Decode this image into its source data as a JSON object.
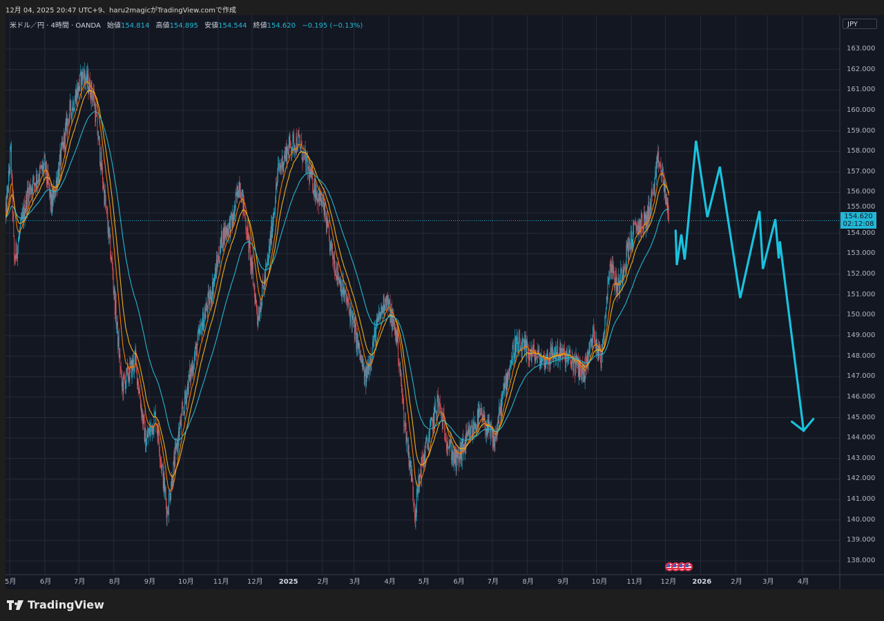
{
  "caption": "12月 04, 2025 20:47 UTC+9、haru2magicがTradingView.comで作成",
  "legend": {
    "symbol": "米ドル／円 · 4時間 · OANDA",
    "open_label": "始値",
    "open": "154.814",
    "high_label": "高値",
    "high": "154.895",
    "low_label": "安値",
    "low": "154.544",
    "close_label": "終値",
    "close": "154.620",
    "change": "−0.195 (−0.13%)"
  },
  "currency": "JPY",
  "last_price": {
    "price": "154.620",
    "countdown": "02:12:08"
  },
  "brand": "TradingView",
  "colors": {
    "background": "#131722",
    "grid": "#262b37",
    "up": "#22b8d6",
    "down": "#e0525a",
    "ma_fast": "#f57c00",
    "ma_mid": "#f0b020",
    "ma_slow": "#26b6d0",
    "projection": "#18c3df"
  },
  "chart_data": {
    "type": "candlestick",
    "interval": "4h",
    "ylim": [
      137.5,
      164
    ],
    "y_ticks": [
      "138.000",
      "139.000",
      "140.000",
      "141.000",
      "142.000",
      "143.000",
      "144.000",
      "145.000",
      "146.000",
      "147.000",
      "148.000",
      "149.000",
      "150.000",
      "151.000",
      "152.000",
      "153.000",
      "154.000",
      "155.000",
      "156.000",
      "157.000",
      "158.000",
      "159.000",
      "160.000",
      "161.000",
      "162.000",
      "163.000"
    ],
    "x_ticks": [
      {
        "label": "5月",
        "date": "2024-05-01"
      },
      {
        "label": "6月",
        "date": "2024-06-01"
      },
      {
        "label": "7月",
        "date": "2024-07-01"
      },
      {
        "label": "8月",
        "date": "2024-08-01"
      },
      {
        "label": "9月",
        "date": "2024-09-01"
      },
      {
        "label": "10月",
        "date": "2024-10-01"
      },
      {
        "label": "11月",
        "date": "2024-11-01"
      },
      {
        "label": "12月",
        "date": "2024-12-01"
      },
      {
        "label": "2025",
        "date": "2025-01-01",
        "bold": true
      },
      {
        "label": "2月",
        "date": "2025-02-01"
      },
      {
        "label": "3月",
        "date": "2025-03-01"
      },
      {
        "label": "4月",
        "date": "2025-04-01"
      },
      {
        "label": "5月",
        "date": "2025-05-01"
      },
      {
        "label": "6月",
        "date": "2025-06-01"
      },
      {
        "label": "7月",
        "date": "2025-07-01"
      },
      {
        "label": "8月",
        "date": "2025-08-01"
      },
      {
        "label": "9月",
        "date": "2025-09-01"
      },
      {
        "label": "10月",
        "date": "2025-10-01"
      },
      {
        "label": "11月",
        "date": "2025-11-01"
      },
      {
        "label": "12月",
        "date": "2025-12-01"
      },
      {
        "label": "2026",
        "date": "2026-01-01",
        "bold": true
      },
      {
        "label": "2月",
        "date": "2026-02-01"
      },
      {
        "label": "3月",
        "date": "2026-03-01"
      },
      {
        "label": "4月",
        "date": "2026-04-01"
      }
    ],
    "price_path": [
      [
        "2024-04-27",
        154.6
      ],
      [
        "2024-05-02",
        158.0
      ],
      [
        "2024-05-05",
        152.6
      ],
      [
        "2024-05-17",
        156.0
      ],
      [
        "2024-06-01",
        157.3
      ],
      [
        "2024-06-07",
        155.3
      ],
      [
        "2024-06-22",
        159.7
      ],
      [
        "2024-07-05",
        161.8
      ],
      [
        "2024-07-14",
        160.7
      ],
      [
        "2024-07-20",
        157.7
      ],
      [
        "2024-07-30",
        152.6
      ],
      [
        "2024-08-08",
        146.5
      ],
      [
        "2024-08-20",
        147.8
      ],
      [
        "2024-08-29",
        143.8
      ],
      [
        "2024-09-07",
        145.1
      ],
      [
        "2024-09-17",
        140.4
      ],
      [
        "2024-09-26",
        143.8
      ],
      [
        "2024-10-05",
        146.5
      ],
      [
        "2024-10-18",
        149.6
      ],
      [
        "2024-10-27",
        151.3
      ],
      [
        "2024-11-05",
        153.9
      ],
      [
        "2024-11-14",
        154.6
      ],
      [
        "2024-11-20",
        156.6
      ],
      [
        "2024-11-27",
        153.9
      ],
      [
        "2024-12-06",
        149.9
      ],
      [
        "2024-12-15",
        152.6
      ],
      [
        "2024-12-24",
        157.0
      ],
      [
        "2025-01-03",
        158.3
      ],
      [
        "2025-01-11",
        158.5
      ],
      [
        "2025-01-18",
        157.3
      ],
      [
        "2025-01-27",
        156.0
      ],
      [
        "2025-02-02",
        155.3
      ],
      [
        "2025-02-08",
        153.3
      ],
      [
        "2025-02-17",
        151.6
      ],
      [
        "2025-02-27",
        149.9
      ],
      [
        "2025-03-11",
        146.8
      ],
      [
        "2025-03-20",
        149.2
      ],
      [
        "2025-03-29",
        150.9
      ],
      [
        "2025-04-08",
        148.9
      ],
      [
        "2025-04-14",
        145.1
      ],
      [
        "2025-04-20",
        142.5
      ],
      [
        "2025-04-24",
        140.4
      ],
      [
        "2025-04-29",
        142.5
      ],
      [
        "2025-05-05",
        143.8
      ],
      [
        "2025-05-14",
        145.8
      ],
      [
        "2025-05-23",
        143.8
      ],
      [
        "2025-05-30",
        142.8
      ],
      [
        "2025-06-08",
        143.8
      ],
      [
        "2025-06-20",
        145.1
      ],
      [
        "2025-07-03",
        143.8
      ],
      [
        "2025-07-12",
        146.5
      ],
      [
        "2025-07-21",
        148.5
      ],
      [
        "2025-08-03",
        148.2
      ],
      [
        "2025-08-15",
        147.8
      ],
      [
        "2025-08-27",
        148.2
      ],
      [
        "2025-09-08",
        147.8
      ],
      [
        "2025-09-20",
        147.2
      ],
      [
        "2025-09-29",
        149.2
      ],
      [
        "2025-10-05",
        147.8
      ],
      [
        "2025-10-13",
        152.6
      ],
      [
        "2025-10-20",
        151.3
      ],
      [
        "2025-10-29",
        153.3
      ],
      [
        "2025-11-05",
        154.3
      ],
      [
        "2025-11-14",
        154.6
      ],
      [
        "2025-11-20",
        156.0
      ],
      [
        "2025-11-25",
        157.6
      ],
      [
        "2025-11-30",
        156.3
      ],
      [
        "2025-12-04",
        154.62
      ]
    ],
    "moving_averages": [
      "ma_fast",
      "ma_mid",
      "ma_slow"
    ],
    "projection": [
      [
        "2025-12-10",
        154.13
      ],
      [
        "2025-12-11",
        152.45
      ],
      [
        "2025-12-15",
        153.94
      ],
      [
        "2025-12-18",
        152.72
      ],
      [
        "2025-12-28",
        158.52
      ],
      [
        "2026-01-07",
        154.79
      ],
      [
        "2026-01-18",
        157.25
      ],
      [
        "2026-02-05",
        150.84
      ],
      [
        "2026-02-22",
        155.09
      ],
      [
        "2026-02-25",
        152.26
      ],
      [
        "2026-03-08",
        154.69
      ],
      [
        "2026-03-11",
        152.77
      ],
      [
        "2026-03-12",
        153.61
      ],
      [
        "2026-04-02",
        144.36
      ]
    ],
    "events": [
      {
        "icon": "us-flag-icon"
      },
      {
        "icon": "us-flag-icon"
      },
      {
        "icon": "us-flag-icon"
      },
      {
        "icon": "us-flag-icon"
      }
    ],
    "grid": true
  }
}
